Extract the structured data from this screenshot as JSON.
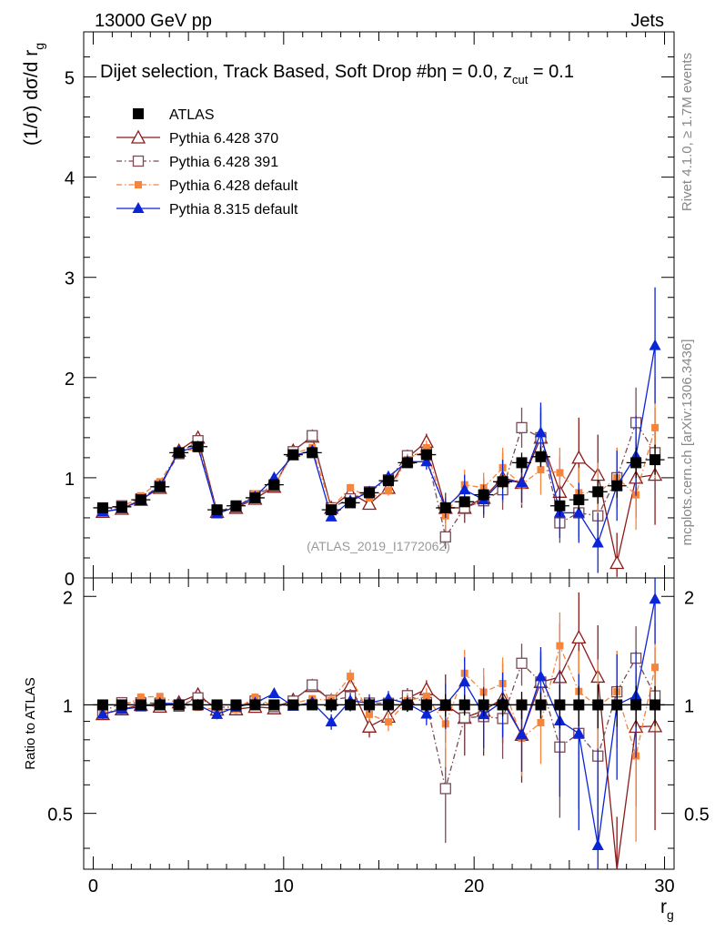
{
  "header": {
    "left": "13000 GeV pp",
    "right": "Jets",
    "side_rivet": "Rivet 4.1.0, ≥ 1.7M events",
    "side_mcplots": "mcplots.cern.ch [arXiv:1306.3436]"
  },
  "chart_data": {
    "type": "scatter",
    "title": "Dijet selection, Track Based, Soft Drop #bη = 0.0, z_cut = 0.1",
    "title_text": "Dijet selection, Track Based, Soft Drop #bη = 0.0, z",
    "title_sub": "cut",
    "title_end": " = 0.1",
    "watermark": "(ATLAS_2019_I1772062)",
    "xlabel": "r",
    "xlabel_sub": "g",
    "ylabel": "(1/σ) dσ/d r",
    "ylabel_sub": "g",
    "ratio_ylabel": "Ratio to ATLAS",
    "xlim": [
      -0.5,
      30.5
    ],
    "ylim": [
      0,
      5.45
    ],
    "ratio_ylim": [
      0.35,
      2.25
    ],
    "x_ticks": [
      0,
      10,
      20,
      30
    ],
    "y_ticks": [
      0,
      1,
      2,
      3,
      4,
      5
    ],
    "ratio_ticks": [
      0.5,
      1,
      2
    ],
    "x": [
      0.5,
      1.5,
      2.5,
      3.5,
      4.5,
      5.5,
      6.5,
      7.5,
      8.5,
      9.5,
      10.5,
      11.5,
      12.5,
      13.5,
      14.5,
      15.5,
      16.5,
      17.5,
      18.5,
      19.5,
      20.5,
      21.5,
      22.5,
      23.5,
      24.5,
      25.5,
      26.5,
      27.5,
      28.5,
      29.5
    ],
    "series": [
      {
        "name": "ATLAS",
        "color": "#000000",
        "marker": "square-filled",
        "line": "none",
        "values": [
          0.7,
          0.71,
          0.78,
          0.91,
          1.25,
          1.31,
          0.68,
          0.72,
          0.8,
          0.93,
          1.23,
          1.25,
          0.68,
          0.75,
          0.85,
          0.97,
          1.15,
          1.23,
          0.7,
          0.76,
          0.83,
          0.96,
          1.15,
          1.21,
          0.72,
          0.78,
          0.86,
          0.92,
          1.15,
          1.18
        ],
        "errors": [
          0.02,
          0.02,
          0.02,
          0.02,
          0.03,
          0.03,
          0.02,
          0.02,
          0.02,
          0.02,
          0.03,
          0.03,
          0.03,
          0.03,
          0.04,
          0.04,
          0.05,
          0.05,
          0.05,
          0.05,
          0.06,
          0.07,
          0.1,
          0.1,
          0.1,
          0.1,
          0.12,
          0.12,
          0.15,
          0.15
        ]
      },
      {
        "name": "Pythia 6.428 370",
        "color": "#8b1a1a",
        "marker": "triangle-open",
        "line": "solid",
        "values": [
          0.66,
          0.69,
          0.78,
          0.9,
          1.27,
          1.4,
          0.66,
          0.7,
          0.79,
          0.91,
          1.27,
          1.41,
          0.7,
          0.85,
          0.74,
          0.9,
          1.2,
          1.36,
          0.7,
          0.7,
          0.8,
          1.0,
          0.95,
          1.4,
          0.86,
          1.2,
          1.03,
          0.15,
          1.0,
          1.03
        ],
        "errors": [
          0.02,
          0.02,
          0.02,
          0.02,
          0.03,
          0.03,
          0.02,
          0.02,
          0.02,
          0.02,
          0.03,
          0.03,
          0.03,
          0.05,
          0.05,
          0.05,
          0.08,
          0.08,
          0.15,
          0.15,
          0.2,
          0.25,
          0.25,
          0.3,
          0.35,
          0.4,
          0.4,
          0.3,
          0.4,
          0.5
        ]
      },
      {
        "name": "Pythia 6.428 391",
        "color": "#7a4a55",
        "marker": "square-open",
        "line": "dashdot",
        "values": [
          0.67,
          0.72,
          0.79,
          0.92,
          1.24,
          1.37,
          0.67,
          0.71,
          0.82,
          0.92,
          1.26,
          1.42,
          0.7,
          0.79,
          0.86,
          0.98,
          1.22,
          1.25,
          0.41,
          0.7,
          0.77,
          0.88,
          1.5,
          1.4,
          0.55,
          0.65,
          0.62,
          1.0,
          1.55,
          1.25
        ],
        "errors": [
          0.02,
          0.02,
          0.02,
          0.02,
          0.03,
          0.03,
          0.02,
          0.02,
          0.02,
          0.02,
          0.03,
          0.03,
          0.03,
          0.04,
          0.04,
          0.05,
          0.06,
          0.07,
          0.12,
          0.15,
          0.15,
          0.2,
          0.2,
          0.25,
          0.2,
          0.25,
          0.25,
          0.3,
          0.35,
          0.45
        ]
      },
      {
        "name": "Pythia 6.428 default",
        "color": "#f5843c",
        "marker": "square-filled-small",
        "line": "dashdot",
        "values": [
          0.66,
          0.7,
          0.82,
          0.96,
          1.26,
          1.29,
          0.66,
          0.7,
          0.84,
          0.92,
          1.24,
          1.3,
          0.7,
          0.9,
          0.8,
          0.87,
          1.18,
          1.3,
          0.62,
          0.93,
          0.9,
          1.1,
          0.93,
          1.08,
          1.05,
          0.85,
          0.85,
          1.0,
          0.83,
          1.5
        ],
        "errors": [
          0.02,
          0.02,
          0.02,
          0.02,
          0.03,
          0.03,
          0.02,
          0.02,
          0.02,
          0.02,
          0.03,
          0.03,
          0.03,
          0.04,
          0.04,
          0.05,
          0.06,
          0.07,
          0.15,
          0.15,
          0.15,
          0.2,
          0.2,
          0.25,
          0.25,
          0.25,
          0.3,
          0.3,
          0.35,
          0.5
        ]
      },
      {
        "name": "Pythia 8.315 default",
        "color": "#0a24d8",
        "marker": "triangle-filled",
        "line": "solid",
        "values": [
          0.66,
          0.69,
          0.77,
          0.92,
          1.26,
          1.31,
          0.64,
          0.71,
          0.81,
          1.0,
          1.22,
          1.27,
          0.61,
          0.77,
          0.86,
          1.01,
          1.16,
          1.16,
          0.7,
          0.88,
          0.78,
          0.98,
          0.95,
          1.45,
          0.65,
          0.65,
          0.35,
          0.92,
          1.22,
          2.32
        ],
        "errors": [
          0.02,
          0.02,
          0.02,
          0.02,
          0.03,
          0.03,
          0.02,
          0.02,
          0.02,
          0.02,
          0.03,
          0.03,
          0.03,
          0.04,
          0.05,
          0.05,
          0.06,
          0.08,
          0.1,
          0.15,
          0.15,
          0.2,
          0.2,
          0.3,
          0.25,
          0.3,
          0.3,
          0.35,
          0.4,
          0.58
        ]
      }
    ],
    "legend_position": "top-left"
  }
}
